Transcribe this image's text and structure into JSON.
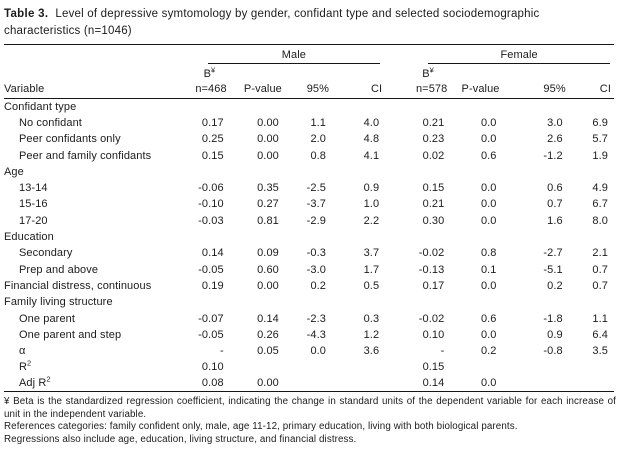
{
  "title": {
    "label": "Table 3.",
    "text": "Level of depressive symtomology by gender, confidant type and selected sociodemographic characteristics (n=1046)"
  },
  "header": {
    "variable": "Variable",
    "beta": "B",
    "beta_sup": "¥",
    "male": {
      "group": "Male",
      "n": "n=468",
      "pvalue": "P-value",
      "ci_low": "95%",
      "ci_high": "CI"
    },
    "female": {
      "group": "Female",
      "n": "n=578",
      "pvalue": "P-value",
      "ci_low": "95%",
      "ci_high": "CI"
    }
  },
  "rows": [
    {
      "label": "Confidant type",
      "indent": 0,
      "cells": [
        "",
        "",
        "",
        "",
        "",
        "",
        "",
        ""
      ]
    },
    {
      "label": "No confidant",
      "indent": 1,
      "cells": [
        "0.17",
        "0.00",
        "1.1",
        "4.0",
        "0.21",
        "0.0",
        "3.0",
        "6.9"
      ]
    },
    {
      "label": "Peer confidants only",
      "indent": 1,
      "cells": [
        "0.25",
        "0.00",
        "2.0",
        "4.8",
        "0.23",
        "0.0",
        "2.6",
        "5.7"
      ]
    },
    {
      "label": "Peer and family confidants",
      "indent": 1,
      "cells": [
        "0.15",
        "0.00",
        "0.8",
        "4.1",
        "0.02",
        "0.6",
        "-1.2",
        "1.9"
      ]
    },
    {
      "label": "Age",
      "indent": 0,
      "cells": [
        "",
        "",
        "",
        "",
        "",
        "",
        "",
        ""
      ]
    },
    {
      "label": "13-14",
      "indent": 1,
      "cells": [
        "-0.06",
        "0.35",
        "-2.5",
        "0.9",
        "0.15",
        "0.0",
        "0.6",
        "4.9"
      ]
    },
    {
      "label": "15-16",
      "indent": 1,
      "cells": [
        "-0.10",
        "0.27",
        "-3.7",
        "1.0",
        "0.21",
        "0.0",
        "0.7",
        "6.7"
      ]
    },
    {
      "label": "17-20",
      "indent": 1,
      "cells": [
        "-0.03",
        "0.81",
        "-2.9",
        "2.2",
        "0.30",
        "0.0",
        "1.6",
        "8.0"
      ]
    },
    {
      "label": "Education",
      "indent": 0,
      "cells": [
        "",
        "",
        "",
        "",
        "",
        "",
        "",
        ""
      ]
    },
    {
      "label": "Secondary",
      "indent": 1,
      "cells": [
        "0.14",
        "0.09",
        "-0.3",
        "3.7",
        "-0.02",
        "0.8",
        "-2.7",
        "2.1"
      ]
    },
    {
      "label": "Prep and above",
      "indent": 1,
      "cells": [
        "-0.05",
        "0.60",
        "-3.0",
        "1.7",
        "-0.13",
        "0.1",
        "-5.1",
        "0.7"
      ]
    },
    {
      "label": "Financial distress, continuous",
      "indent": 0,
      "cells": [
        "0.19",
        "0.00",
        "0.2",
        "0.5",
        "0.17",
        "0.0",
        "0.2",
        "0.7"
      ]
    },
    {
      "label": "Family living structure",
      "indent": 0,
      "cells": [
        "",
        "",
        "",
        "",
        "",
        "",
        "",
        ""
      ]
    },
    {
      "label": "One parent",
      "indent": 1,
      "cells": [
        "-0.07",
        "0.14",
        "-2.3",
        "0.3",
        "-0.02",
        "0.6",
        "-1.8",
        "1.1"
      ]
    },
    {
      "label": "One parent and step",
      "indent": 1,
      "cells": [
        "-0.05",
        "0.26",
        "-4.3",
        "1.2",
        "0.10",
        "0.0",
        "0.9",
        "6.4"
      ]
    },
    {
      "label": "α",
      "indent": 1,
      "cells": [
        "-",
        "0.05",
        "0.0",
        "3.6",
        "-",
        "0.2",
        "-0.8",
        "3.5"
      ]
    },
    {
      "label": "R",
      "sup": "2",
      "indent": 1,
      "cells": [
        "0.10",
        "",
        "",
        "",
        "0.15",
        "",
        "",
        ""
      ]
    },
    {
      "label": "Adj R",
      "sup": "2",
      "indent": 1,
      "cells": [
        "0.08",
        "0.00",
        "",
        "",
        "0.14",
        "0.0",
        "",
        ""
      ]
    }
  ],
  "footnotes": [
    "¥ Beta is the standardized regression coefficient, indicating the change in standard units of the dependent variable for each increase of unit in the independent variable.",
    "References categories: family confident only, male, age 11-12, primary education, living with both biological parents.",
    "Regressions also include age, education, living structure, and financial distress."
  ],
  "colors": {
    "text": "#1c1c1c",
    "rule": "#161616",
    "background": "#ffffff"
  }
}
